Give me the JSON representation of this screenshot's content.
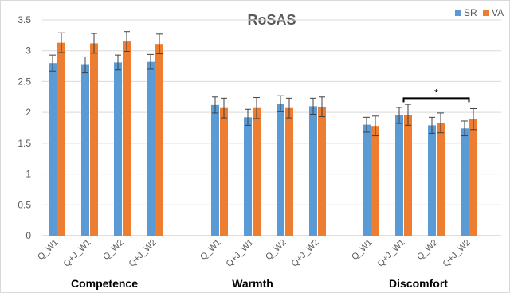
{
  "chart_data": {
    "type": "bar",
    "title": "RoSAS",
    "ylim": [
      0,
      3.5
    ],
    "yticks": [
      "0",
      "0.5",
      "1",
      "1.5",
      "2",
      "2.5",
      "3",
      "3.5"
    ],
    "grid": true,
    "legend_position": "top-right",
    "colors": {
      "SR": "#5b9bd5",
      "VA": "#ed7d31"
    },
    "groups": [
      {
        "name": "Competence",
        "categories": [
          "Q_W1",
          "Q+J_W1",
          "Q_W2",
          "Q+J_W2"
        ],
        "series": [
          {
            "name": "SR",
            "values": [
              2.8,
              2.77,
              2.81,
              2.82
            ],
            "errors": [
              0.13,
              0.13,
              0.12,
              0.12
            ]
          },
          {
            "name": "VA",
            "values": [
              3.13,
              3.12,
              3.15,
              3.11
            ],
            "errors": [
              0.16,
              0.16,
              0.16,
              0.16
            ]
          }
        ]
      },
      {
        "name": "Warmth",
        "categories": [
          "Q_W1",
          "Q+J_W1",
          "Q_W2",
          "Q+J_W2"
        ],
        "series": [
          {
            "name": "SR",
            "values": [
              2.12,
              1.92,
              2.14,
              2.1
            ],
            "errors": [
              0.13,
              0.13,
              0.13,
              0.13
            ]
          },
          {
            "name": "VA",
            "values": [
              2.07,
              2.07,
              2.07,
              2.09
            ],
            "errors": [
              0.16,
              0.17,
              0.16,
              0.16
            ]
          }
        ]
      },
      {
        "name": "Discomfort",
        "categories": [
          "Q_W1",
          "Q+J_W1",
          "Q_W2",
          "Q+J_W2"
        ],
        "series": [
          {
            "name": "SR",
            "values": [
              1.8,
              1.95,
              1.79,
              1.74
            ],
            "errors": [
              0.12,
              0.13,
              0.13,
              0.12
            ]
          },
          {
            "name": "VA",
            "values": [
              1.78,
              1.96,
              1.83,
              1.89
            ],
            "errors": [
              0.16,
              0.17,
              0.16,
              0.17
            ]
          }
        ]
      }
    ],
    "annotation": {
      "text": "*",
      "group": "Discomfort",
      "from": "Q+J_W1",
      "to": "Q+J_W2"
    }
  }
}
